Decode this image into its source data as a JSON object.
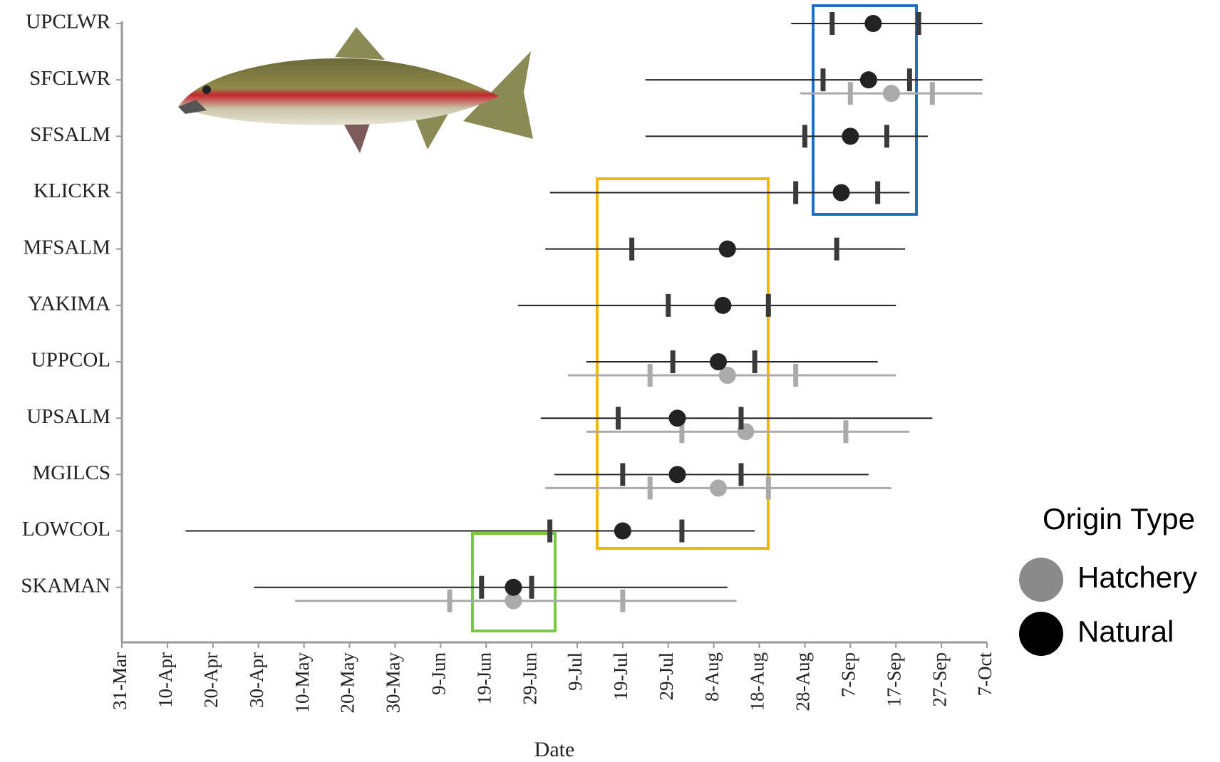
{
  "chart_data": {
    "type": "dot_range",
    "x_label": "Date",
    "legend_title": "Origin Type",
    "categories": [
      "UPCLWR",
      "SFCLWR",
      "SFSALM",
      "KLICKR",
      "MFSALM",
      "YAKIMA",
      "UPPCOL",
      "UPSALM",
      "MGILCS",
      "LOWCOL",
      "SKAMAN"
    ],
    "xlim": [
      90,
      280
    ],
    "xticks": [
      {
        "value": 90,
        "label": "31-Mar"
      },
      {
        "value": 100,
        "label": "10-Apr"
      },
      {
        "value": 110,
        "label": "20-Apr"
      },
      {
        "value": 120,
        "label": "30-Apr"
      },
      {
        "value": 130,
        "label": "10-May"
      },
      {
        "value": 140,
        "label": "20-May"
      },
      {
        "value": 150,
        "label": "30-May"
      },
      {
        "value": 160,
        "label": "9-Jun"
      },
      {
        "value": 170,
        "label": "19-Jun"
      },
      {
        "value": 180,
        "label": "29-Jun"
      },
      {
        "value": 190,
        "label": "9-Jul"
      },
      {
        "value": 200,
        "label": "19-Jul"
      },
      {
        "value": 210,
        "label": "29-Jul"
      },
      {
        "value": 220,
        "label": "8-Aug"
      },
      {
        "value": 230,
        "label": "18-Aug"
      },
      {
        "value": 240,
        "label": "28-Aug"
      },
      {
        "value": 250,
        "label": "7-Sep"
      },
      {
        "value": 260,
        "label": "17-Sep"
      },
      {
        "value": 270,
        "label": "27-Sep"
      },
      {
        "value": 280,
        "label": "7-Oct"
      }
    ],
    "series": [
      {
        "name": "Hatchery",
        "color": "#aaaaaa",
        "legend_color": "#8a8a8a",
        "min": [
          null,
          239,
          null,
          null,
          null,
          null,
          188,
          192,
          183,
          null,
          128
        ],
        "lower": [
          null,
          250,
          null,
          null,
          null,
          null,
          206,
          213,
          206,
          null,
          162
        ],
        "values": [
          null,
          259,
          null,
          null,
          null,
          null,
          223,
          227,
          221,
          null,
          176
        ],
        "upper": [
          null,
          268,
          null,
          null,
          null,
          null,
          238,
          249,
          232,
          null,
          200
        ],
        "max": [
          null,
          279,
          null,
          null,
          null,
          null,
          260,
          263,
          259,
          null,
          225
        ]
      },
      {
        "name": "Natural",
        "color": "#222222",
        "legend_color": "#000000",
        "min": [
          237,
          205,
          205,
          184,
          183,
          177,
          192,
          182,
          185,
          104,
          119
        ],
        "lower": [
          246,
          244,
          240,
          238,
          202,
          210,
          211,
          199,
          200,
          184,
          169
        ],
        "values": [
          255,
          254,
          250,
          248,
          223,
          222,
          221,
          212,
          212,
          200,
          176
        ],
        "upper": [
          265,
          263,
          258,
          256,
          247,
          232,
          229,
          226,
          226,
          213,
          180
        ],
        "max": [
          279,
          279,
          267,
          263,
          262,
          260,
          256,
          268,
          254,
          229,
          223
        ]
      }
    ]
  }
}
